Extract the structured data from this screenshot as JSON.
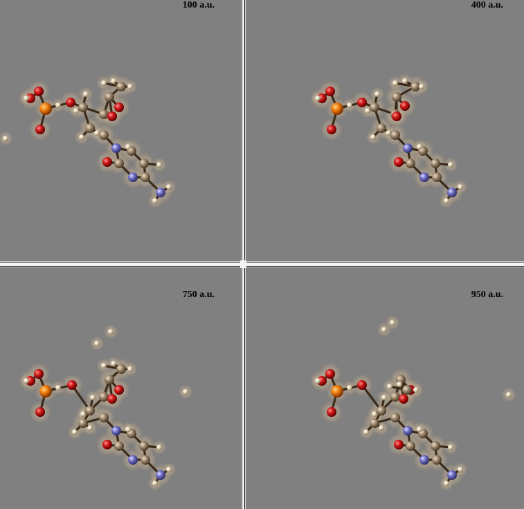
{
  "panels": [
    {
      "label": "100 a.u."
    },
    {
      "label": "400 a.u."
    },
    {
      "label": "750 a.u."
    },
    {
      "label": "950 a.u."
    }
  ],
  "colors": {
    "background": "#808080",
    "carbon": "#a08a70",
    "hydrogen": "#e8dcc0",
    "oxygen": "#d01818",
    "nitrogen": "#7070c8",
    "phosphorus": "#f08010",
    "density_cloud": "#b8a890"
  }
}
